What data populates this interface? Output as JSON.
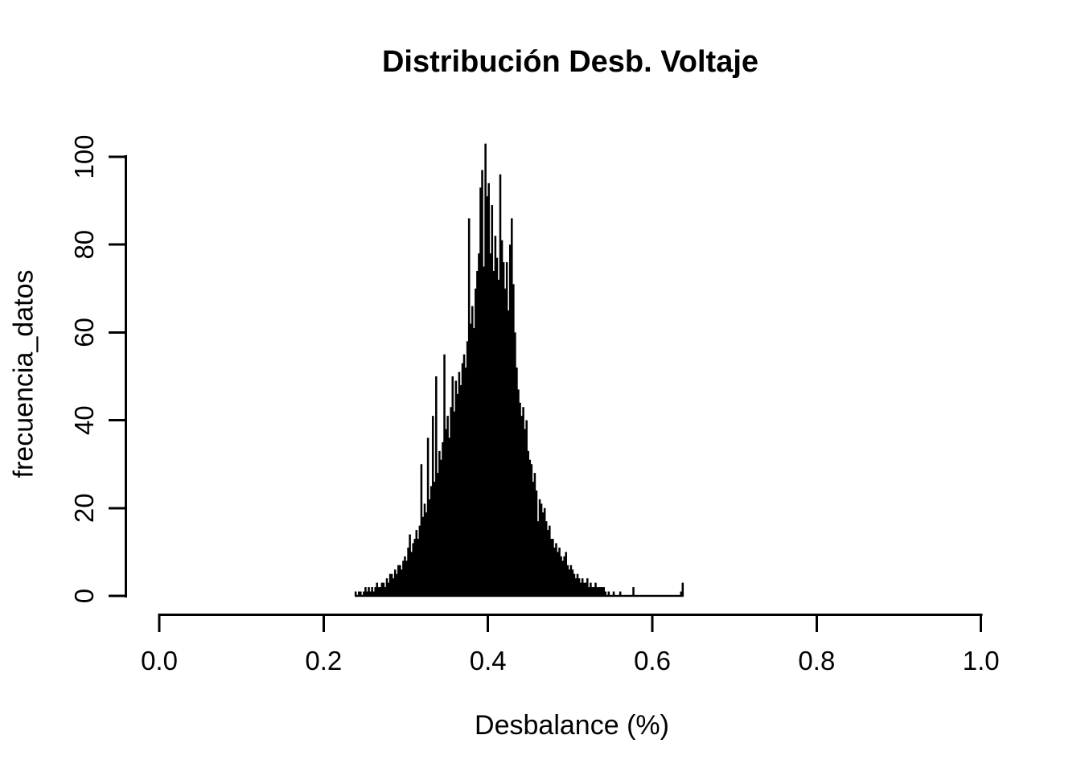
{
  "title": "Distribución Desb. Voltaje",
  "chart_data": {
    "type": "bar",
    "subtype": "histogram",
    "title": "Distribución Desb. Voltaje",
    "xlabel": "Desbalance (%)",
    "ylabel": "frecuencia_datos",
    "xlim": [
      0.0,
      1.0
    ],
    "ylim": [
      0,
      100
    ],
    "y_max_value": 103,
    "grid": false,
    "legend_position": "none",
    "bar_color": "#000000",
    "axis_color": "#000000",
    "background": "#ffffff",
    "x_ticks": [
      0.0,
      0.2,
      0.4,
      0.6,
      0.8,
      1.0
    ],
    "x_tick_labels": [
      "0.0",
      "0.2",
      "0.4",
      "0.6",
      "0.8",
      "1.0"
    ],
    "y_ticks": [
      0,
      20,
      40,
      60,
      80,
      100
    ],
    "y_tick_labels": [
      "0",
      "20",
      "40",
      "60",
      "80",
      "100"
    ],
    "bins": {
      "start": 0.238,
      "width": 0.002,
      "count": 200,
      "counts": [
        1,
        0,
        1,
        1,
        0,
        1,
        2,
        1,
        2,
        1,
        2,
        1,
        2,
        3,
        2,
        2,
        3,
        3,
        2,
        4,
        3,
        5,
        5,
        4,
        6,
        5,
        7,
        7,
        6,
        8,
        9,
        8,
        11,
        14,
        10,
        12,
        13,
        15,
        13,
        16,
        30,
        18,
        21,
        19,
        36,
        22,
        25,
        41,
        26,
        50,
        28,
        33,
        31,
        35,
        55,
        38,
        41,
        36,
        43,
        50,
        42,
        49,
        46,
        51,
        48,
        53,
        55,
        52,
        58,
        86,
        62,
        66,
        61,
        70,
        74,
        78,
        93,
        97,
        75,
        103,
        91,
        94,
        78,
        89,
        74,
        82,
        77,
        72,
        96,
        81,
        76,
        70,
        76,
        65,
        80,
        86,
        71,
        60,
        52,
        47,
        44,
        41,
        43,
        38,
        40,
        33,
        31,
        30,
        26,
        28,
        24,
        17,
        22,
        21,
        19,
        20,
        17,
        15,
        16,
        13,
        13,
        11,
        12,
        10,
        11,
        9,
        8,
        9,
        10,
        7,
        6,
        7,
        6,
        5,
        4,
        5,
        4,
        3,
        4,
        3,
        3,
        4,
        2,
        3,
        2,
        2,
        3,
        2,
        2,
        2,
        2,
        2,
        1,
        0,
        1,
        0,
        0,
        1,
        0,
        0,
        0,
        1,
        0,
        0,
        0,
        0,
        0,
        0,
        0,
        2,
        0,
        0,
        0,
        0,
        0,
        0,
        0,
        0,
        0,
        0,
        0,
        0,
        0,
        0,
        0,
        0,
        0,
        0,
        0,
        0,
        0,
        0,
        0,
        0,
        0,
        0,
        0,
        0,
        1,
        3
      ]
    }
  }
}
